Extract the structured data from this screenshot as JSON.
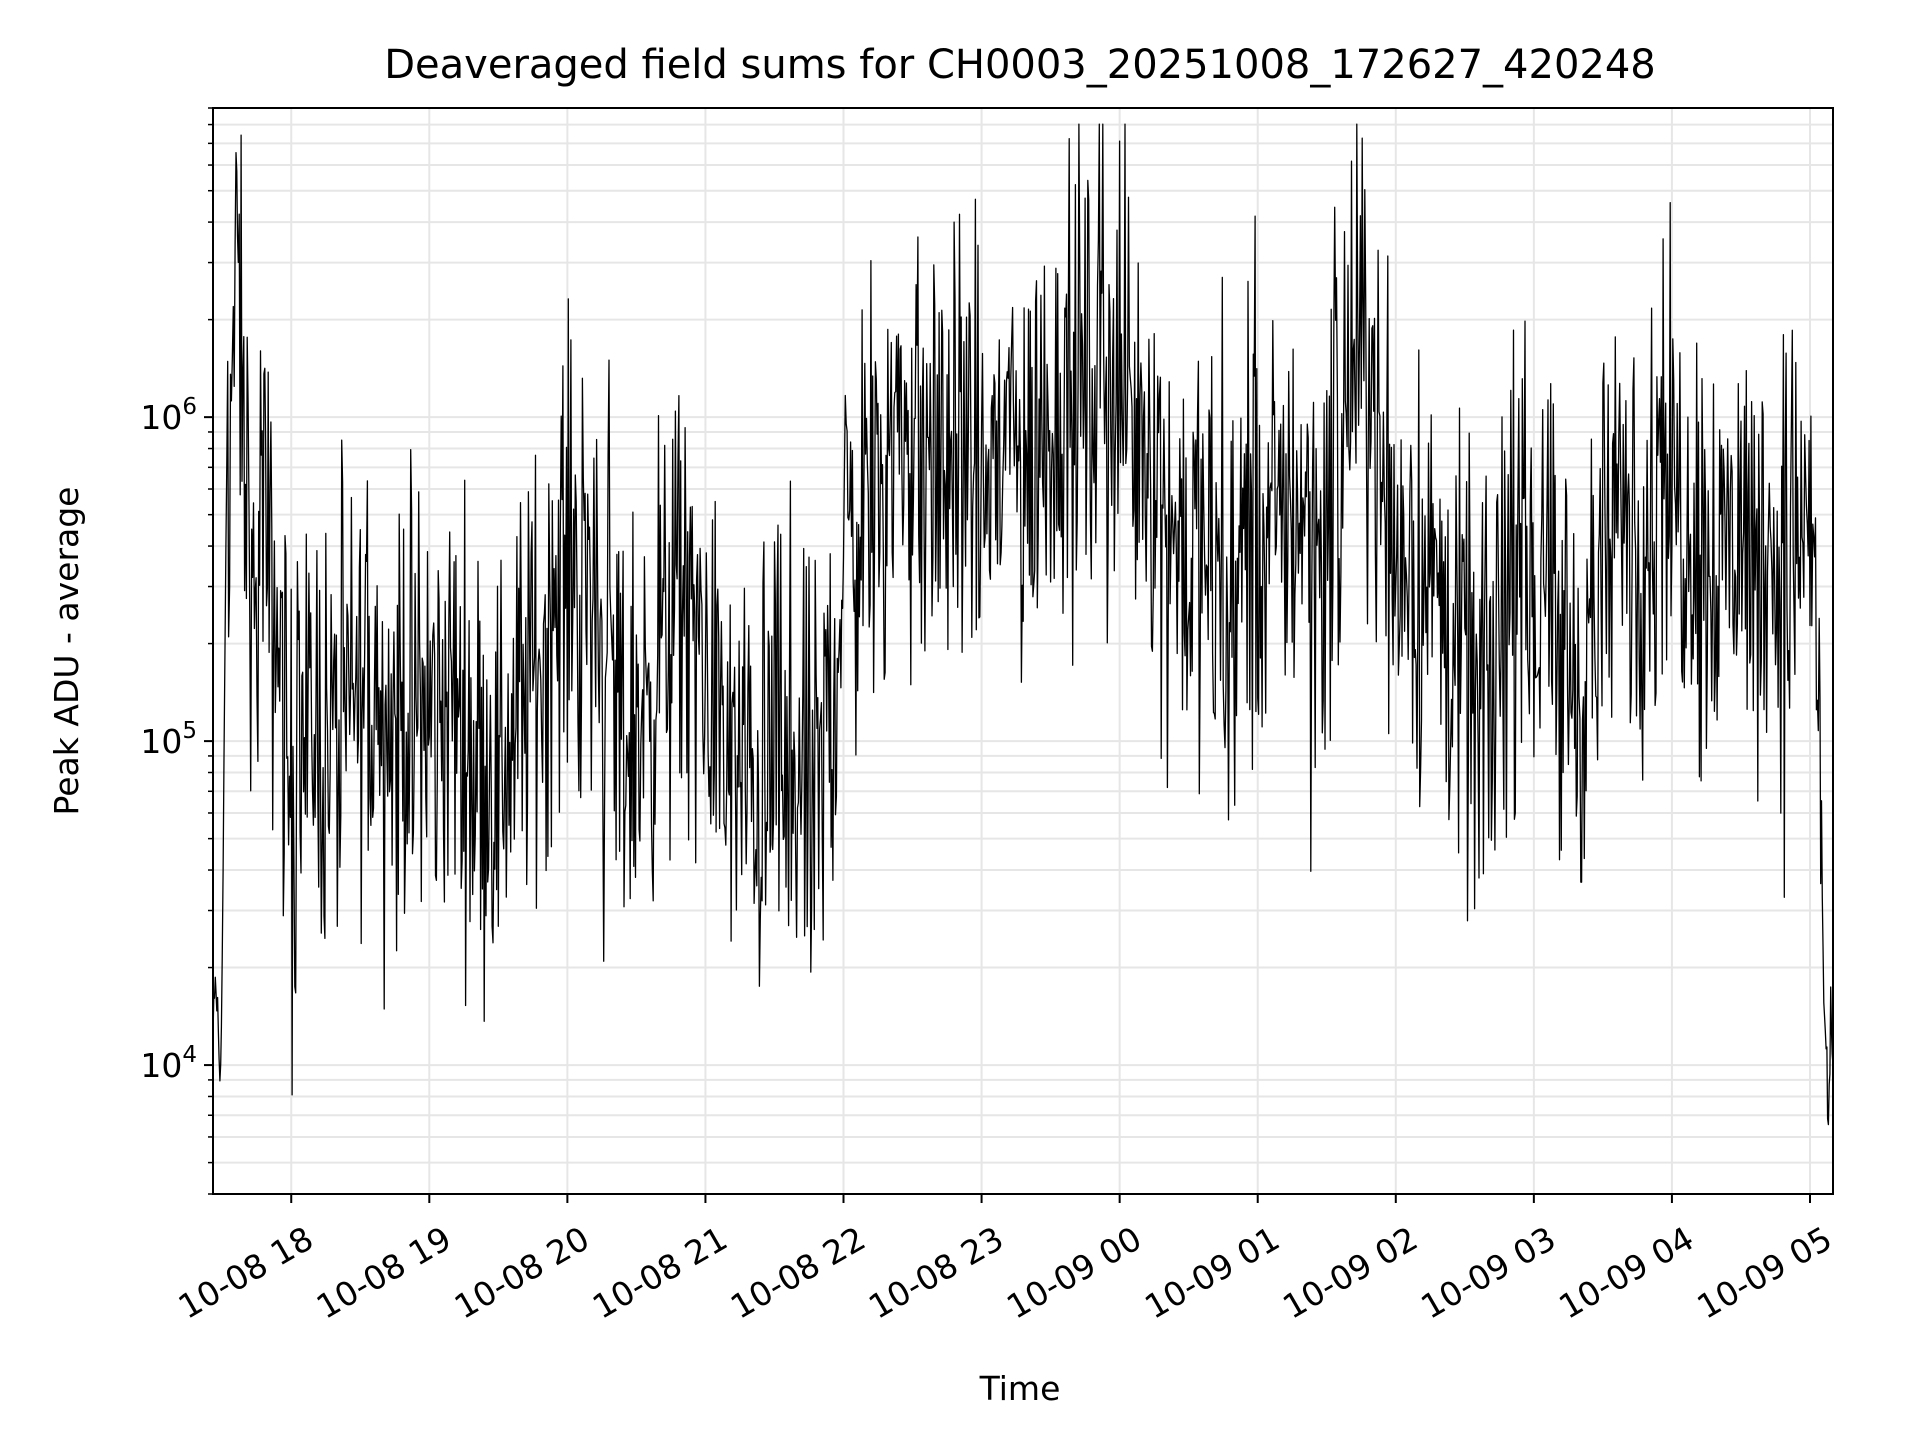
{
  "chart_data": {
    "type": "line",
    "title": "Deaveraged field sums for CH0003_20251008_172627_420248",
    "xlabel": "Time",
    "ylabel": "Peak ADU - average",
    "yscale": "log",
    "grid": true,
    "x_range": [
      "2025-10-08 17:26",
      "2025-10-09 05:10"
    ],
    "ylim": [
      4000,
      9000000
    ],
    "x_ticks": [
      {
        "time": "2025-10-08 18:00",
        "label": "10-08 18"
      },
      {
        "time": "2025-10-08 19:00",
        "label": "10-08 19"
      },
      {
        "time": "2025-10-08 20:00",
        "label": "10-08 20"
      },
      {
        "time": "2025-10-08 21:00",
        "label": "10-08 21"
      },
      {
        "time": "2025-10-08 22:00",
        "label": "10-08 22"
      },
      {
        "time": "2025-10-08 23:00",
        "label": "10-08 23"
      },
      {
        "time": "2025-10-09 00:00",
        "label": "10-09 00"
      },
      {
        "time": "2025-10-09 01:00",
        "label": "10-09 01"
      },
      {
        "time": "2025-10-09 02:00",
        "label": "10-09 02"
      },
      {
        "time": "2025-10-09 03:00",
        "label": "10-09 03"
      },
      {
        "time": "2025-10-09 04:00",
        "label": "10-09 04"
      },
      {
        "time": "2025-10-09 05:00",
        "label": "10-09 05"
      }
    ],
    "y_ticks": [
      {
        "value": 10000,
        "base": "10",
        "exp": "4"
      },
      {
        "value": 100000,
        "base": "10",
        "exp": "5"
      },
      {
        "value": 1000000,
        "base": "10",
        "exp": "6"
      }
    ],
    "series": [
      {
        "line_color": "#000000",
        "points": [
          [
            "2025-10-08 17:26",
            12000
          ],
          [
            "2025-10-08 17:27",
            17000
          ],
          [
            "2025-10-08 17:28",
            15000
          ],
          [
            "2025-10-08 17:29",
            8500
          ],
          [
            "2025-10-08 17:30",
            18000
          ],
          [
            "2025-10-08 17:32",
            900000
          ],
          [
            "2025-10-08 17:34",
            1500000
          ],
          [
            "2025-10-08 17:36",
            2000000
          ],
          [
            "2025-10-08 17:37",
            3000000
          ],
          [
            "2025-10-08 17:39",
            800000
          ],
          [
            "2025-10-08 17:42",
            500000
          ],
          [
            "2025-10-08 17:44",
            140000
          ],
          [
            "2025-10-08 17:47",
            700000
          ],
          [
            "2025-10-08 17:50",
            300000
          ],
          [
            "2025-10-08 17:55",
            200000
          ],
          [
            "2025-10-08 18:00",
            60000
          ],
          [
            "2025-10-08 18:10",
            120000
          ],
          [
            "2025-10-08 18:20",
            90000
          ],
          [
            "2025-10-08 18:30",
            150000
          ],
          [
            "2025-10-08 18:40",
            100000
          ],
          [
            "2025-10-08 18:50",
            130000
          ],
          [
            "2025-10-08 19:00",
            110000
          ],
          [
            "2025-10-08 19:10",
            140000
          ],
          [
            "2025-10-08 19:20",
            90000
          ],
          [
            "2025-10-08 19:30",
            80000
          ],
          [
            "2025-10-08 19:40",
            130000
          ],
          [
            "2025-10-08 19:50",
            200000
          ],
          [
            "2025-10-08 20:00",
            400000
          ],
          [
            "2025-10-08 20:10",
            300000
          ],
          [
            "2025-10-08 20:20",
            150000
          ],
          [
            "2025-10-08 20:30",
            100000
          ],
          [
            "2025-10-08 20:40",
            200000
          ],
          [
            "2025-10-08 20:50",
            250000
          ],
          [
            "2025-10-08 21:00",
            200000
          ],
          [
            "2025-10-08 21:10",
            80000
          ],
          [
            "2025-10-08 21:20",
            70000
          ],
          [
            "2025-10-08 21:30",
            90000
          ],
          [
            "2025-10-08 21:40",
            60000
          ],
          [
            "2025-10-08 21:50",
            70000
          ],
          [
            "2025-10-08 22:00",
            350000
          ],
          [
            "2025-10-08 22:10",
            600000
          ],
          [
            "2025-10-08 22:20",
            900000
          ],
          [
            "2025-10-08 22:30",
            800000
          ],
          [
            "2025-10-08 22:40",
            700000
          ],
          [
            "2025-10-08 22:50",
            800000
          ],
          [
            "2025-10-08 23:00",
            600000
          ],
          [
            "2025-10-08 23:10",
            800000
          ],
          [
            "2025-10-08 23:20",
            700000
          ],
          [
            "2025-10-08 23:30",
            1000000
          ],
          [
            "2025-10-08 23:40",
            1200000
          ],
          [
            "2025-10-08 23:50",
            1300000
          ],
          [
            "2025-10-09 00:00",
            1100000
          ],
          [
            "2025-10-09 00:10",
            1200000
          ],
          [
            "2025-10-09 00:20",
            500000
          ],
          [
            "2025-10-09 00:30",
            400000
          ],
          [
            "2025-10-09 00:40",
            300000
          ],
          [
            "2025-10-09 00:50",
            250000
          ],
          [
            "2025-10-09 01:00",
            400000
          ],
          [
            "2025-10-09 01:10",
            500000
          ],
          [
            "2025-10-09 01:20",
            600000
          ],
          [
            "2025-10-09 01:30",
            400000
          ],
          [
            "2025-10-09 01:40",
            1500000
          ],
          [
            "2025-10-09 01:50",
            1200000
          ],
          [
            "2025-10-09 02:00",
            400000
          ],
          [
            "2025-10-09 02:10",
            350000
          ],
          [
            "2025-10-09 02:20",
            250000
          ],
          [
            "2025-10-09 02:30",
            150000
          ],
          [
            "2025-10-09 02:40",
            120000
          ],
          [
            "2025-10-09 02:50",
            300000
          ],
          [
            "2025-10-09 03:00",
            350000
          ],
          [
            "2025-10-09 03:10",
            200000
          ],
          [
            "2025-10-09 03:20",
            150000
          ],
          [
            "2025-10-09 03:30",
            300000
          ],
          [
            "2025-10-09 03:40",
            400000
          ],
          [
            "2025-10-09 03:50",
            500000
          ],
          [
            "2025-10-09 04:00",
            600000
          ],
          [
            "2025-10-09 04:10",
            500000
          ],
          [
            "2025-10-09 04:20",
            400000
          ],
          [
            "2025-10-09 04:30",
            450000
          ],
          [
            "2025-10-09 04:40",
            350000
          ],
          [
            "2025-10-09 04:50",
            400000
          ],
          [
            "2025-10-09 05:00",
            500000
          ],
          [
            "2025-10-09 05:02",
            300000
          ],
          [
            "2025-10-09 05:04",
            100000
          ],
          [
            "2025-10-09 05:05",
            60000
          ],
          [
            "2025-10-09 05:06",
            15000
          ],
          [
            "2025-10-09 05:07",
            12000
          ],
          [
            "2025-10-09 05:08",
            6000
          ],
          [
            "2025-10-09 05:09",
            15000
          ],
          [
            "2025-10-09 05:10",
            10000
          ]
        ]
      }
    ]
  }
}
